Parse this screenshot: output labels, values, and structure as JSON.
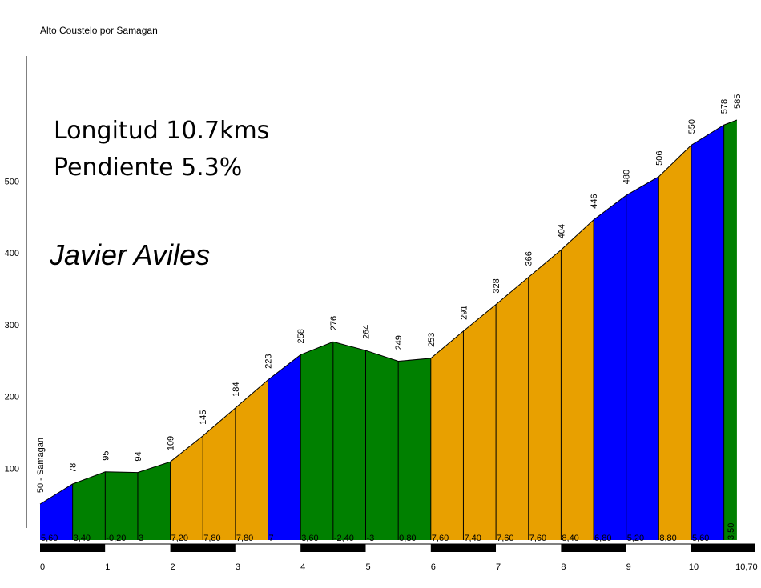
{
  "title": "Alto Coustelo por Samagan",
  "info": {
    "length": "Longitud 10.7kms",
    "slope": "Pendiente 5.3%",
    "author": "Javier Aviles"
  },
  "colors": {
    "green": "#008000",
    "orange": "#E8A000",
    "blue": "#0000FF",
    "axis": "#000000"
  },
  "chart_data": {
    "type": "area",
    "title": "Alto Coustelo por Samagan",
    "xlabel": "",
    "ylabel": "",
    "xlim": [
      0,
      10.7
    ],
    "ylim": [
      0,
      600
    ],
    "grid": false,
    "y_ticks": [
      "100",
      "200",
      "300",
      "400",
      "500"
    ],
    "x_ticks": [
      "0",
      "1",
      "2",
      "3",
      "4",
      "5",
      "6",
      "7",
      "8",
      "9",
      "10",
      "10,70"
    ],
    "profile": [
      {
        "km": 0,
        "alt": 50,
        "label": "50 - Samagan"
      },
      {
        "km": 0.5,
        "alt": 78,
        "label": "78"
      },
      {
        "km": 1,
        "alt": 95,
        "label": "95"
      },
      {
        "km": 1.5,
        "alt": 94,
        "label": "94"
      },
      {
        "km": 2,
        "alt": 109,
        "label": "109"
      },
      {
        "km": 2.5,
        "alt": 145,
        "label": "145"
      },
      {
        "km": 3,
        "alt": 184,
        "label": "184"
      },
      {
        "km": 3.5,
        "alt": 223,
        "label": "223"
      },
      {
        "km": 4,
        "alt": 258,
        "label": "258"
      },
      {
        "km": 4.5,
        "alt": 276,
        "label": "276"
      },
      {
        "km": 5,
        "alt": 264,
        "label": "264"
      },
      {
        "km": 5.5,
        "alt": 249,
        "label": "249"
      },
      {
        "km": 6,
        "alt": 253,
        "label": "253"
      },
      {
        "km": 6.5,
        "alt": 291,
        "label": "291"
      },
      {
        "km": 7,
        "alt": 328,
        "label": "328"
      },
      {
        "km": 7.5,
        "alt": 366,
        "label": "366"
      },
      {
        "km": 8,
        "alt": 404,
        "label": "404"
      },
      {
        "km": 8.5,
        "alt": 446,
        "label": "446"
      },
      {
        "km": 9,
        "alt": 480,
        "label": "480"
      },
      {
        "km": 9.5,
        "alt": 506,
        "label": "506"
      },
      {
        "km": 10,
        "alt": 550,
        "label": "550"
      },
      {
        "km": 10.5,
        "alt": 578,
        "label": "578"
      },
      {
        "km": 10.7,
        "alt": 585,
        "label": "585"
      }
    ],
    "segments": [
      {
        "grade": "5,60",
        "color": "blue"
      },
      {
        "grade": "3,40",
        "color": "green"
      },
      {
        "grade": "-0,20",
        "color": "green"
      },
      {
        "grade": "3",
        "color": "green"
      },
      {
        "grade": "7,20",
        "color": "orange"
      },
      {
        "grade": "7,80",
        "color": "orange"
      },
      {
        "grade": "7,80",
        "color": "orange"
      },
      {
        "grade": "7",
        "color": "blue"
      },
      {
        "grade": "3,60",
        "color": "green"
      },
      {
        "grade": "-2,40",
        "color": "green"
      },
      {
        "grade": "-3",
        "color": "green"
      },
      {
        "grade": "0,80",
        "color": "green"
      },
      {
        "grade": "7,60",
        "color": "orange"
      },
      {
        "grade": "7,40",
        "color": "orange"
      },
      {
        "grade": "7,60",
        "color": "orange"
      },
      {
        "grade": "7,60",
        "color": "orange"
      },
      {
        "grade": "8,40",
        "color": "orange"
      },
      {
        "grade": "6,80",
        "color": "blue"
      },
      {
        "grade": "5,20",
        "color": "blue"
      },
      {
        "grade": "8,80",
        "color": "orange"
      },
      {
        "grade": "5,60",
        "color": "blue"
      },
      {
        "grade": "3,50",
        "color": "green"
      }
    ]
  }
}
